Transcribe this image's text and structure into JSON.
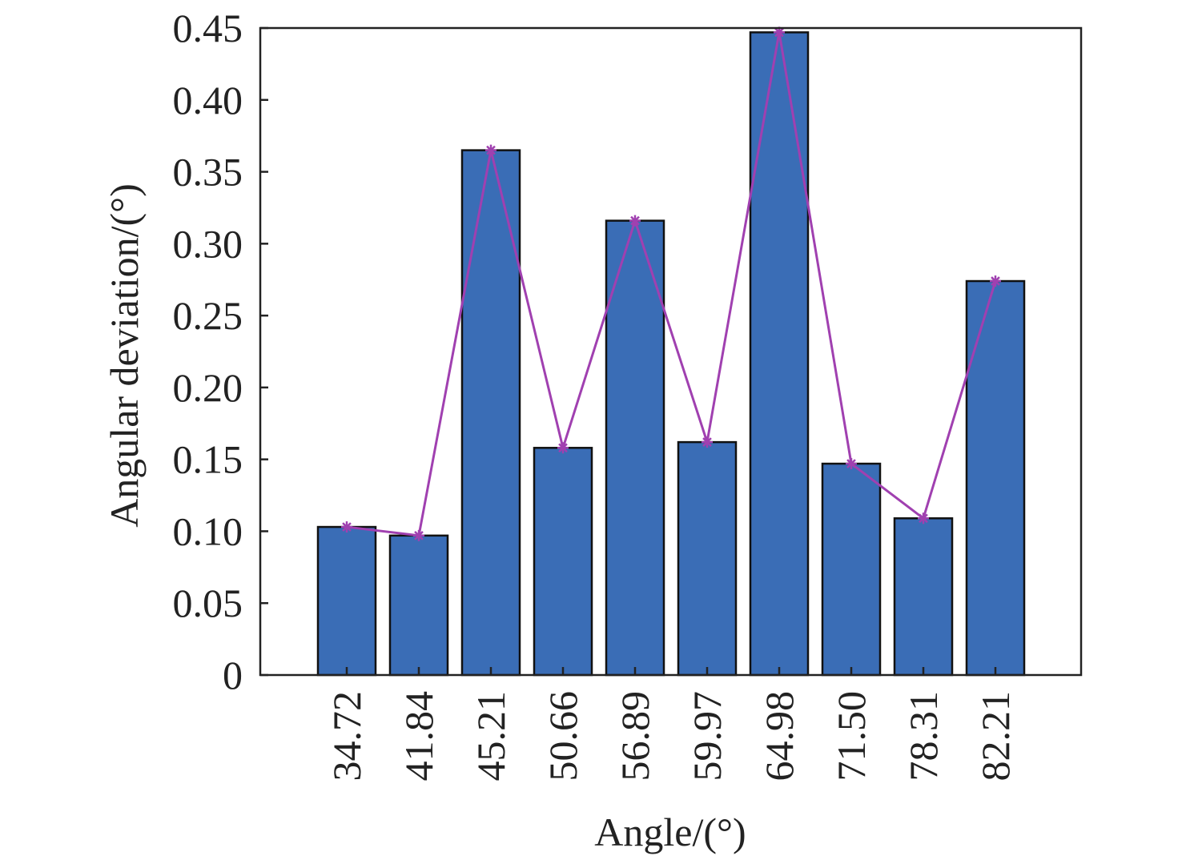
{
  "chart_data": {
    "type": "bar",
    "xlabel": "Angle/(°)",
    "ylabel": "Angular deviation/(°)",
    "categories": [
      "34.72",
      "41.84",
      "45.21",
      "50.66",
      "56.89",
      "59.97",
      "64.98",
      "71.50",
      "78.31",
      "82.21"
    ],
    "values": [
      0.103,
      0.097,
      0.365,
      0.158,
      0.316,
      0.162,
      0.447,
      0.147,
      0.109,
      0.274
    ],
    "line_values": [
      0.103,
      0.097,
      0.365,
      0.158,
      0.316,
      0.162,
      0.447,
      0.147,
      0.109,
      0.274
    ],
    "ylim": [
      0,
      0.45
    ],
    "yticks": [
      "0",
      "0.05",
      "0.10",
      "0.15",
      "0.20",
      "0.25",
      "0.30",
      "0.35",
      "0.40",
      "0.45"
    ],
    "grid": false,
    "colors": {
      "bar": "#3a6db6",
      "bar_edge": "#111111",
      "line": "#a040b0",
      "axis": "#222222"
    }
  }
}
